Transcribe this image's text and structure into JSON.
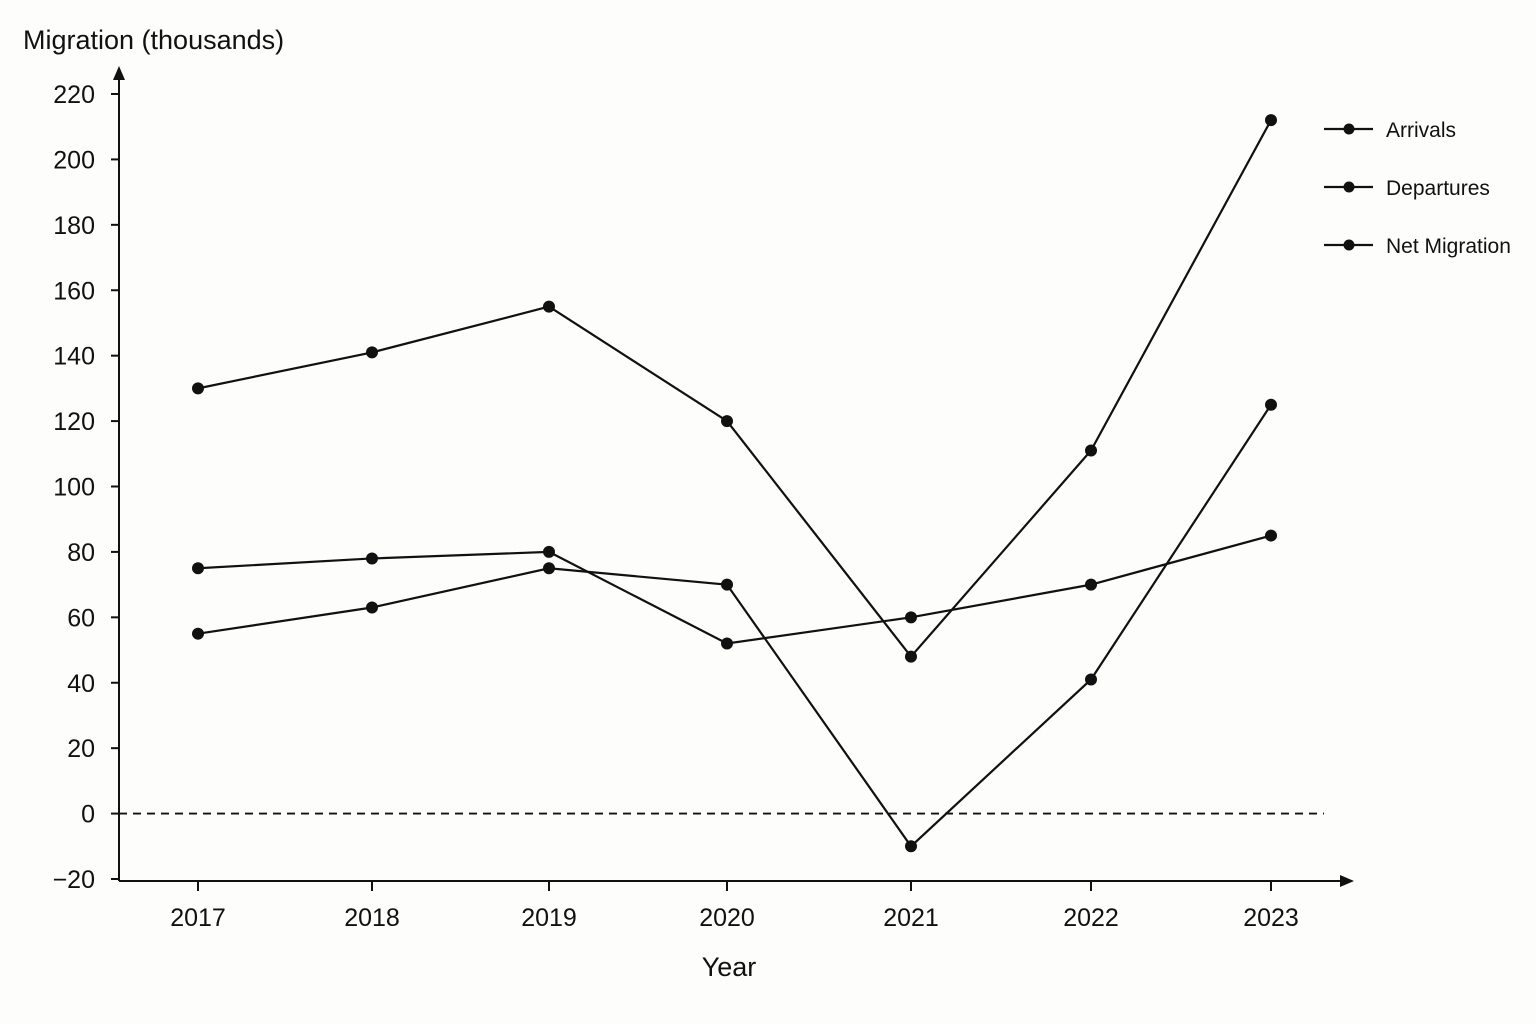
{
  "chart_data": {
    "type": "line",
    "ylabel": "Migration (thousands)",
    "xlabel": "Year",
    "x": [
      "2017",
      "2018",
      "2019",
      "2020",
      "2021",
      "2022",
      "2023"
    ],
    "yticks": [
      -20,
      0,
      20,
      40,
      60,
      80,
      100,
      120,
      140,
      160,
      180,
      200,
      220
    ],
    "ylim": [
      -20,
      220
    ],
    "zero_reference_line": true,
    "legend_position": "top-right",
    "series": [
      {
        "name": "Arrivals",
        "values": [
          130,
          141,
          155,
          120,
          48,
          111,
          212
        ]
      },
      {
        "name": "Departures",
        "values": [
          55,
          63,
          75,
          70,
          -10,
          41,
          125
        ]
      },
      {
        "name": "Net Migration",
        "values": [
          75,
          78,
          80,
          52,
          60,
          70,
          85
        ]
      }
    ]
  }
}
